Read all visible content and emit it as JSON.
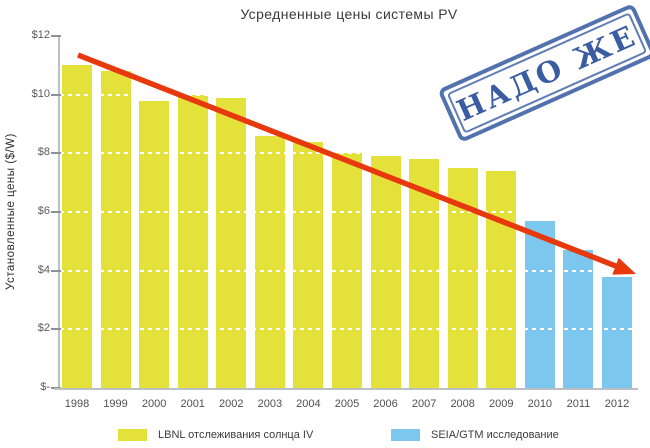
{
  "title": "Усредненные цены системы PV",
  "y_axis": {
    "label": "Установленные цены ($/W)",
    "tick_labels": [
      "$-",
      "$2",
      "$4",
      "$6",
      "$8",
      "$10",
      "$12"
    ],
    "max": 12
  },
  "stamp": {
    "text": "НАДО ЖЕ",
    "color": "#2f549e"
  },
  "legend": {
    "items": [
      {
        "label": "LBNL отслеживания солнца IV",
        "color": "#e4e13b",
        "x": 118
      },
      {
        "label": "SEIA/GTM исследование",
        "color": "#7cc7ee",
        "x": 391
      }
    ]
  },
  "colors": {
    "bar_yellow": "#e4e13b",
    "bar_blue": "#7cc7ee",
    "trend_arrow": "#e8380e",
    "gridline": "#c9c9c9",
    "axis": "#b9c0c6"
  },
  "chart_data": {
    "type": "bar",
    "title": "Усредненные цены системы PV",
    "xlabel": "",
    "ylabel": "Установленные цены ($/W)",
    "ylim": [
      0,
      12
    ],
    "grid": "dashed horizontal",
    "legend_position": "bottom",
    "categories": [
      "1998",
      "1999",
      "2000",
      "2001",
      "2002",
      "2003",
      "2004",
      "2005",
      "2006",
      "2007",
      "2008",
      "2009",
      "2010",
      "2011",
      "2012"
    ],
    "series": [
      {
        "name": "LBNL отслеживания солнца IV",
        "color": "#e4e13b",
        "values": [
          11.0,
          10.8,
          9.8,
          10.0,
          9.9,
          8.6,
          8.4,
          8.0,
          7.9,
          7.8,
          7.5,
          7.4,
          null,
          null,
          null
        ]
      },
      {
        "name": "SEIA/GTM исследование",
        "color": "#7cc7ee",
        "values": [
          null,
          null,
          null,
          null,
          null,
          null,
          null,
          null,
          null,
          null,
          null,
          null,
          5.7,
          4.7,
          3.8
        ]
      }
    ],
    "annotations": {
      "trend_arrow": {
        "color": "#e8380e",
        "from": [
          1998,
          11.3
        ],
        "to": [
          2012,
          3.9
        ]
      },
      "stamp": "НАДО ЖЕ"
    }
  }
}
